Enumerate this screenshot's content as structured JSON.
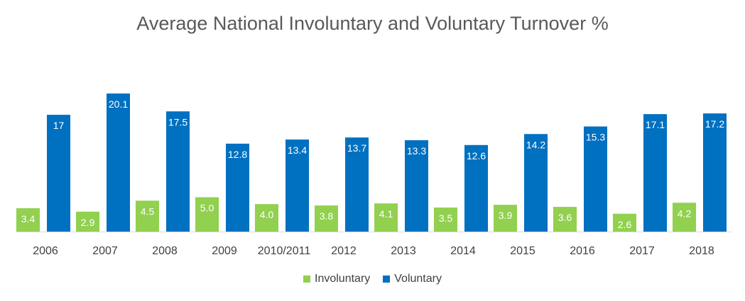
{
  "chart_data": {
    "type": "bar",
    "title": "Average National Involuntary and Voluntary Turnover %",
    "xlabel": "",
    "ylabel": "",
    "categories": [
      "2006",
      "2007",
      "2008",
      "2009",
      "2010/2011",
      "2012",
      "2013",
      "2014",
      "2015",
      "2016",
      "2017",
      "2018"
    ],
    "series": [
      {
        "name": "Involuntary",
        "color": "#92D050",
        "values": [
          3.4,
          2.9,
          4.5,
          5.0,
          4.0,
          3.8,
          4.1,
          3.5,
          3.9,
          3.6,
          2.6,
          4.2
        ],
        "labels": [
          "3.4",
          "2.9",
          "4.5",
          "5.0",
          "4.0",
          "3.8",
          "4.1",
          "3.5",
          "3.9",
          "3.6",
          "2.6",
          "4.2"
        ]
      },
      {
        "name": "Voluntary",
        "color": "#0070C0",
        "values": [
          17,
          20.1,
          17.5,
          12.8,
          13.4,
          13.7,
          13.3,
          12.6,
          14.2,
          15.3,
          17.1,
          17.2
        ],
        "labels": [
          "17",
          "20.1",
          "17.5",
          "12.8",
          "13.4",
          "13.7",
          "13.3",
          "12.6",
          "14.2",
          "15.3",
          "17.1",
          "17.2"
        ]
      }
    ],
    "ylim": [
      0,
      22
    ],
    "grid": false,
    "legend_position": "bottom"
  }
}
